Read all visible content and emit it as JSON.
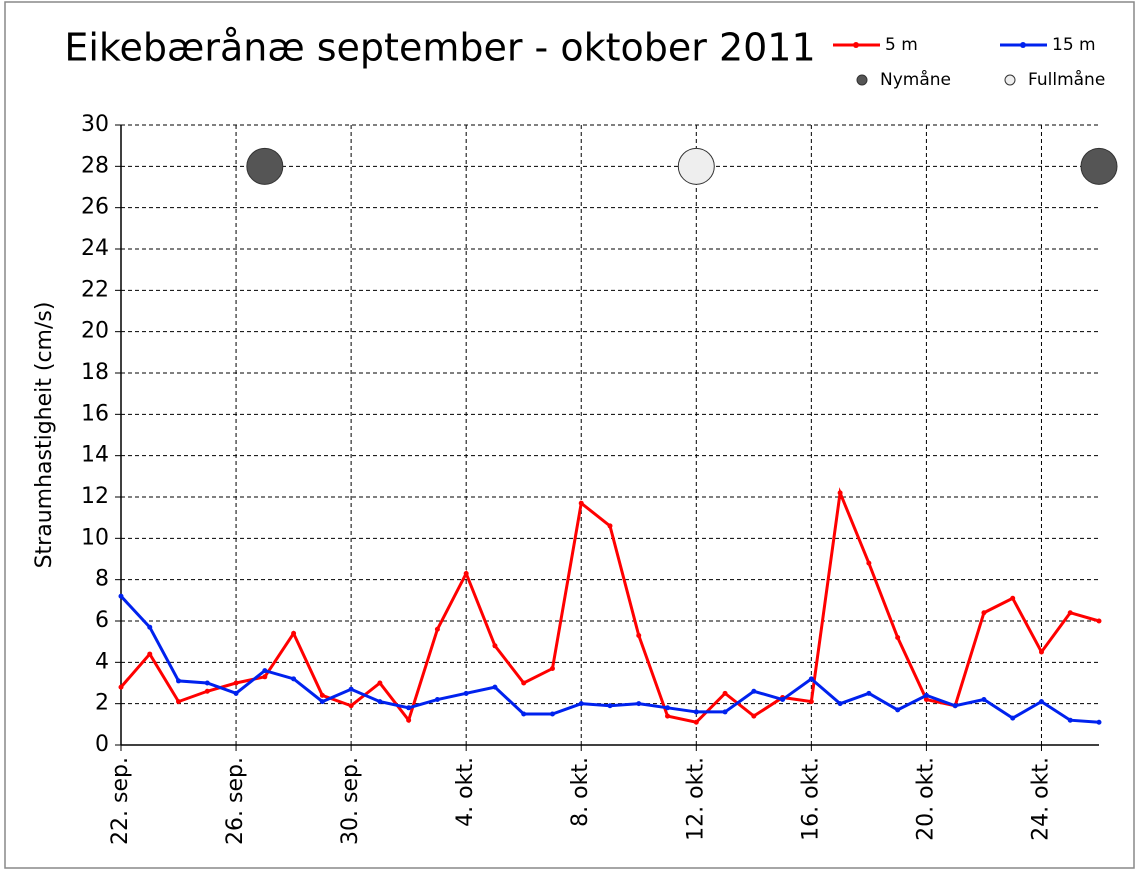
{
  "chart_data": {
    "type": "line",
    "title": "Eikebærånæ september - oktober 2011",
    "y_label": "Straumhastigheit (cm/s)",
    "categories": [
      "22. sep.",
      null,
      null,
      null,
      "26. sep.",
      null,
      null,
      null,
      "30. sep.",
      null,
      null,
      null,
      "4. okt.",
      null,
      null,
      null,
      "8. okt.",
      null,
      null,
      null,
      "12. okt.",
      null,
      null,
      null,
      "16. okt.",
      null,
      null,
      null,
      "20. okt.",
      null,
      null,
      null,
      "24. okt.",
      null,
      null
    ],
    "series": [
      {
        "name": "5 m",
        "color": "#ff0000",
        "style": "line",
        "values": [
          2.8,
          4.4,
          2.1,
          2.6,
          3.0,
          3.3,
          5.4,
          2.4,
          1.9,
          3.0,
          1.2,
          5.6,
          8.3,
          4.8,
          3.0,
          3.7,
          11.7,
          10.6,
          5.3,
          1.4,
          1.1,
          2.5,
          1.4,
          2.3,
          2.1,
          12.2,
          8.8,
          5.2,
          2.2,
          1.9,
          6.4,
          7.1,
          4.5,
          6.4,
          6.0
        ]
      },
      {
        "name": "15 m",
        "color": "#0022ee",
        "style": "line",
        "values": [
          7.2,
          5.7,
          3.1,
          3.0,
          2.5,
          3.6,
          3.2,
          2.1,
          2.7,
          2.1,
          1.8,
          2.2,
          2.5,
          2.8,
          1.5,
          1.5,
          2.0,
          1.9,
          2.0,
          1.8,
          1.6,
          1.6,
          2.6,
          2.2,
          3.2,
          2.0,
          2.5,
          1.7,
          2.4,
          1.9,
          2.2,
          1.3,
          2.1,
          1.2,
          1.1
        ]
      },
      {
        "name": "Nymåne",
        "color": "#555555",
        "style": "marker",
        "values": [
          null,
          null,
          null,
          null,
          null,
          28,
          null,
          null,
          null,
          null,
          null,
          null,
          null,
          null,
          null,
          null,
          null,
          null,
          null,
          null,
          null,
          null,
          null,
          null,
          null,
          null,
          null,
          null,
          null,
          null,
          null,
          null,
          null,
          null,
          28
        ]
      },
      {
        "name": "Fullmåne",
        "color": "#eeeeee",
        "style": "marker",
        "values": [
          null,
          null,
          null,
          null,
          null,
          null,
          null,
          null,
          null,
          null,
          null,
          null,
          null,
          null,
          null,
          null,
          null,
          null,
          null,
          null,
          28,
          null,
          null,
          null,
          null,
          null,
          null,
          null,
          null,
          null,
          null,
          null,
          null,
          null,
          null
        ]
      }
    ],
    "ylim": [
      0,
      30
    ],
    "yticks": [
      0,
      2,
      4,
      6,
      8,
      10,
      12,
      14,
      16,
      18,
      20,
      22,
      24,
      26,
      28,
      30
    ],
    "grid": true
  }
}
